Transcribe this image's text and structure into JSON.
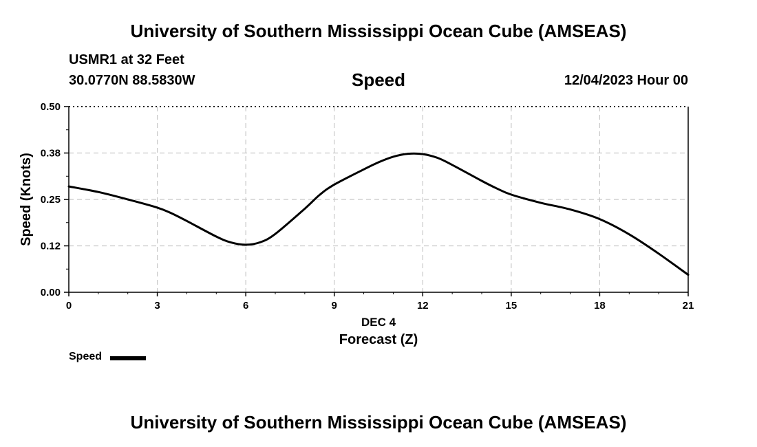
{
  "header": {
    "title": "University of Southern Mississippi Ocean Cube (AMSEAS)",
    "station_line": "USMR1 at 32 Feet",
    "coords_line": "30.0770N  88.5830W",
    "chart_title": "Speed",
    "date_line": "12/04/2023 Hour 00"
  },
  "footer": {
    "title": "University of Southern Mississippi Ocean Cube (AMSEAS)"
  },
  "legend": {
    "label": "Speed"
  },
  "colors": {
    "line": "#000000",
    "grid": "#c8c8c8"
  },
  "chart_data": {
    "type": "line",
    "title": "Speed",
    "xlabel": "Forecast (Z)",
    "xsublabel": "DEC 4",
    "ylabel": "Speed (Knots)",
    "xlim": [
      0,
      21
    ],
    "ylim": [
      0,
      0.5
    ],
    "x_ticks": [
      0,
      3,
      6,
      9,
      12,
      15,
      18,
      21
    ],
    "x_tick_labels": [
      "0",
      "3",
      "6",
      "9",
      "12",
      "15",
      "18",
      "21"
    ],
    "y_ticks": [
      0,
      0.125,
      0.25,
      0.375,
      0.5
    ],
    "y_tick_labels": [
      "0.00",
      "0.12",
      "0.25",
      "0.38",
      "0.50"
    ],
    "grid": true,
    "series": [
      {
        "name": "Speed",
        "x": [
          0,
          1,
          2,
          3,
          3.5,
          4,
          5,
          5.5,
          6,
          6.5,
          7,
          8,
          8.5,
          9,
          10,
          10.5,
          11,
          11.5,
          12,
          12.5,
          13,
          14,
          14.5,
          15,
          16,
          17,
          18,
          19,
          20,
          21
        ],
        "values": [
          0.285,
          0.27,
          0.25,
          0.228,
          0.212,
          0.192,
          0.15,
          0.134,
          0.128,
          0.135,
          0.157,
          0.225,
          0.262,
          0.29,
          0.331,
          0.35,
          0.365,
          0.373,
          0.372,
          0.362,
          0.343,
          0.3,
          0.28,
          0.263,
          0.241,
          0.223,
          0.197,
          0.156,
          0.104,
          0.047
        ]
      }
    ]
  }
}
